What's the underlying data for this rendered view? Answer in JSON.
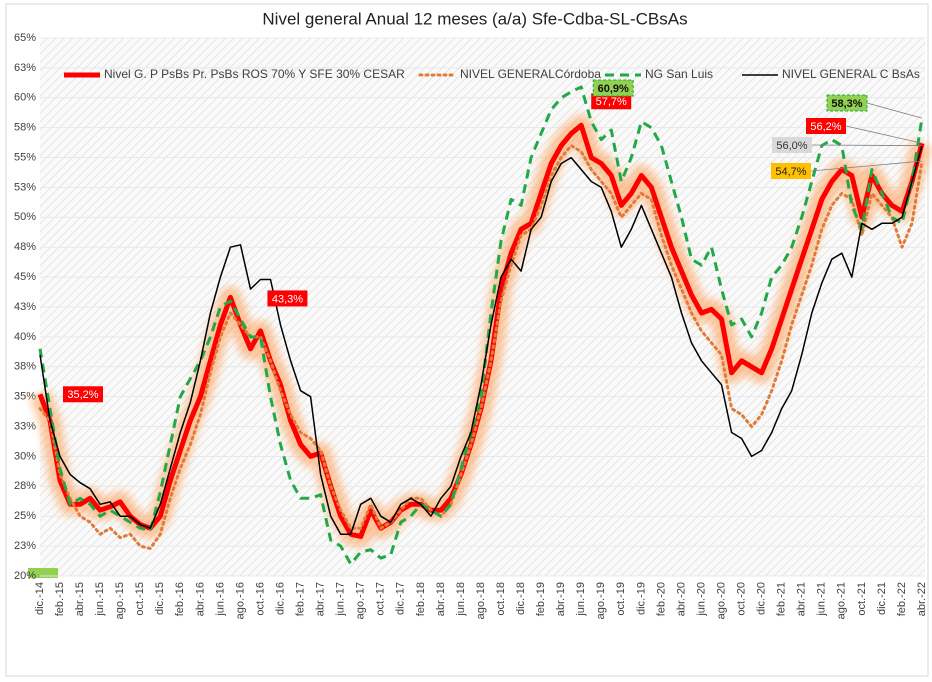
{
  "chart_data": {
    "type": "line",
    "title": "Nivel general  Anual 12 meses (a/a) Sfe-Cdba-SL-CBsAs",
    "categories": [
      "dic.-14",
      null,
      "feb.-15",
      null,
      "abr.-15",
      null,
      "jun.-15",
      null,
      "ago.-15",
      null,
      "oct.-15",
      null,
      "dic.-15",
      null,
      "feb.-16",
      null,
      "abr.-16",
      null,
      "jun.-16",
      null,
      "ago.-16",
      null,
      "oct.-16",
      null,
      "dic.-16",
      null,
      "feb.-17",
      null,
      "abr.-17",
      null,
      "jun.-17",
      null,
      "ago.-17",
      null,
      "oct.-17",
      null,
      "dic.-17",
      null,
      "feb.-18",
      null,
      "abr.-18",
      null,
      "jun.-18",
      null,
      "ago.-18",
      null,
      "oct.-18",
      null,
      "dic.-18",
      null,
      "feb.-19",
      null,
      "abr.-19",
      null,
      "jun.-19",
      null,
      "ago.-19",
      null,
      "oct.-19",
      null,
      "dic.-19",
      null,
      "feb.-20",
      null,
      "abr.-20",
      null,
      "jun.-20",
      null,
      "ago.-20",
      null,
      "oct.-20",
      null,
      "dic.-20",
      null,
      "feb.-21",
      null,
      "abr.-21",
      null,
      "jun.-21",
      null,
      "ago.-21",
      null,
      "oct.-21",
      null,
      "dic.-21",
      null,
      "feb.-22",
      null,
      "abr.-22"
    ],
    "series": [
      {
        "name": "Nivel G. P PsBs Pr. PsBs ROS 70% Y SFE 30% CESAR",
        "color": "#ff0000",
        "style": "solid",
        "width": 5,
        "glow": true,
        "values": [
          35.2,
          33,
          28,
          26,
          26,
          26.5,
          25.5,
          25.8,
          26.2,
          25,
          24.3,
          24,
          25,
          28,
          30.5,
          33,
          35,
          38,
          41,
          43.3,
          41,
          39,
          40.5,
          38,
          36,
          33,
          31,
          30,
          30.3,
          27.5,
          25,
          23.5,
          23.3,
          25.5,
          24,
          24.5,
          25.5,
          26,
          26,
          25.5,
          25.5,
          26.5,
          28.5,
          31,
          34,
          38,
          44,
          47,
          49,
          49.5,
          52,
          54.5,
          56,
          57,
          57.7,
          55,
          54.5,
          53.5,
          51,
          52,
          53.5,
          52.5,
          50,
          47.5,
          45.5,
          43.5,
          42,
          42.3,
          41.5,
          37,
          38,
          37.5,
          37,
          39,
          41.5,
          44,
          46.5,
          49,
          51.5,
          53,
          54,
          53.5,
          50,
          53.5,
          52,
          51,
          50.5,
          53,
          56.2
        ],
        "value_labels": [
          "35,2%",
          null,
          null,
          null,
          null,
          null,
          null,
          null,
          null,
          null,
          null,
          null,
          null,
          null,
          null,
          null,
          null,
          null,
          null,
          "43,3%",
          null,
          null,
          null,
          null,
          null,
          null,
          null,
          null,
          null,
          null,
          null,
          null,
          null,
          null,
          null,
          null,
          null,
          null,
          null,
          null,
          null,
          null,
          null,
          null,
          null,
          null,
          null,
          null,
          null,
          null,
          null,
          null,
          null,
          null,
          "57,7%",
          null,
          null,
          null,
          null,
          null,
          null,
          null,
          null,
          null,
          null,
          null,
          null,
          null,
          null,
          null,
          null,
          null,
          null,
          null,
          null,
          null,
          null,
          null,
          null,
          null,
          null,
          null,
          null,
          null,
          null,
          null,
          null,
          null,
          "56,2%"
        ]
      },
      {
        "name": "NIVEL GENERALCórdoba",
        "color": "#e07b39",
        "style": "dotted",
        "width": 3,
        "values": [
          34,
          33,
          28.5,
          26.5,
          25,
          24.5,
          23.5,
          24,
          23.2,
          23.5,
          22.5,
          22.3,
          23.5,
          26.5,
          29,
          31,
          33.5,
          37,
          40,
          42,
          41,
          40,
          40,
          38,
          35.5,
          33.5,
          32,
          31.5,
          30.5,
          27.5,
          25.5,
          24,
          24,
          26,
          24,
          24.5,
          25.5,
          26.5,
          26.5,
          25.5,
          25,
          26,
          28.5,
          31,
          34,
          38,
          43,
          46,
          48.5,
          49,
          51,
          53.5,
          55,
          56,
          55.5,
          54,
          53,
          52,
          50,
          51,
          52,
          51.5,
          48.5,
          46,
          44,
          42,
          40.5,
          39.5,
          38.5,
          34,
          33.5,
          32.5,
          33.5,
          35.5,
          38,
          41,
          43.5,
          46,
          49,
          51,
          52,
          51.5,
          48.5,
          52,
          51,
          50,
          47.5,
          49.5,
          54.7
        ],
        "value_labels": [
          null,
          null,
          null,
          null,
          null,
          null,
          null,
          null,
          null,
          null,
          null,
          null,
          null,
          null,
          null,
          null,
          null,
          null,
          null,
          null,
          null,
          null,
          null,
          null,
          null,
          null,
          null,
          null,
          null,
          null,
          null,
          null,
          null,
          null,
          null,
          null,
          null,
          null,
          null,
          null,
          null,
          null,
          null,
          null,
          null,
          null,
          null,
          null,
          null,
          null,
          null,
          null,
          null,
          null,
          null,
          null,
          null,
          null,
          null,
          null,
          null,
          null,
          null,
          null,
          null,
          null,
          null,
          null,
          null,
          null,
          null,
          null,
          null,
          null,
          null,
          null,
          null,
          null,
          null,
          null,
          null,
          null,
          null,
          null,
          null,
          null,
          null,
          null,
          "54,7%"
        ]
      },
      {
        "name": "NG San Luis",
        "color": "#22a846",
        "style": "dashed",
        "width": 3,
        "values": [
          39,
          34,
          29,
          26,
          26.5,
          26,
          25,
          25.5,
          25,
          24.5,
          24,
          23.8,
          27,
          31,
          35,
          36.5,
          38,
          40,
          42.5,
          43,
          41.5,
          40,
          40,
          35,
          31,
          28,
          26.5,
          26.5,
          26.8,
          23,
          22.5,
          21,
          22,
          22.2,
          21.5,
          21.8,
          24.5,
          25,
          26,
          25.5,
          25,
          26,
          29,
          32,
          35,
          42,
          48,
          51.5,
          51,
          55,
          57,
          59,
          60,
          60.5,
          60.9,
          58,
          56.5,
          57.3,
          53,
          55,
          58,
          57.5,
          56,
          53,
          50,
          46.5,
          46,
          47.5,
          44,
          41,
          41.5,
          40,
          42,
          45,
          46,
          47.5,
          50,
          53,
          56,
          56.5,
          56,
          51,
          49,
          54,
          52,
          50,
          49.5,
          53,
          58.3
        ],
        "value_labels": [
          null,
          null,
          null,
          null,
          null,
          null,
          null,
          null,
          null,
          null,
          null,
          null,
          null,
          null,
          null,
          null,
          null,
          null,
          null,
          null,
          null,
          null,
          null,
          null,
          null,
          null,
          null,
          null,
          null,
          null,
          null,
          null,
          null,
          null,
          null,
          null,
          null,
          null,
          null,
          null,
          null,
          null,
          null,
          null,
          null,
          null,
          null,
          null,
          null,
          null,
          null,
          null,
          null,
          null,
          "60,9%",
          null,
          null,
          null,
          null,
          null,
          null,
          null,
          null,
          null,
          null,
          null,
          null,
          null,
          null,
          null,
          null,
          null,
          null,
          null,
          null,
          null,
          null,
          null,
          null,
          null,
          null,
          null,
          null,
          null,
          null,
          null,
          null,
          null,
          "58,3%"
        ]
      },
      {
        "name": "NIVEL GENERAL C BsAs",
        "color": "#000000",
        "style": "solid",
        "width": 1.5,
        "values": [
          38.5,
          33,
          30,
          28.5,
          27.8,
          27.3,
          26,
          26.2,
          25,
          25,
          24.3,
          24,
          26,
          29,
          32,
          34.5,
          38,
          42,
          45,
          47.5,
          47.7,
          44,
          44.8,
          44.8,
          41,
          38,
          35.5,
          35,
          28.5,
          25,
          23.5,
          23.5,
          26,
          26.5,
          25,
          24.5,
          26,
          26.5,
          26,
          25,
          26.5,
          27.5,
          30,
          32,
          36,
          41,
          45,
          46.5,
          45.5,
          49,
          50,
          53,
          54.5,
          55,
          54,
          53,
          52.5,
          50.5,
          47.5,
          49,
          51,
          49,
          47,
          45,
          42,
          39.5,
          38,
          37,
          36,
          32,
          31.5,
          30,
          30.5,
          32,
          34,
          35.5,
          38.5,
          42,
          44.5,
          46.5,
          47,
          45,
          49.5,
          49,
          49.5,
          49.5,
          50,
          53,
          56
        ],
        "value_labels": [
          null,
          null,
          null,
          null,
          null,
          null,
          null,
          null,
          null,
          null,
          null,
          null,
          null,
          null,
          null,
          null,
          null,
          null,
          null,
          null,
          null,
          null,
          null,
          null,
          null,
          null,
          null,
          null,
          null,
          null,
          null,
          null,
          null,
          null,
          null,
          null,
          null,
          null,
          null,
          null,
          null,
          null,
          null,
          null,
          null,
          null,
          null,
          null,
          null,
          null,
          null,
          null,
          null,
          null,
          null,
          null,
          null,
          null,
          null,
          null,
          null,
          null,
          null,
          null,
          null,
          null,
          null,
          null,
          null,
          null,
          null,
          null,
          null,
          null,
          null,
          null,
          null,
          null,
          null,
          null,
          null,
          null,
          null,
          null,
          null,
          null,
          null,
          null,
          "56,0%"
        ]
      }
    ],
    "ylim": [
      20,
      65
    ],
    "yticks": [
      {
        "value": 20,
        "label": "20%"
      },
      {
        "value": 22.5,
        "label": "23%"
      },
      {
        "value": 25,
        "label": "25%"
      },
      {
        "value": 27.5,
        "label": "28%"
      },
      {
        "value": 30,
        "label": "30%"
      },
      {
        "value": 32.5,
        "label": "33%"
      },
      {
        "value": 35,
        "label": "35%"
      },
      {
        "value": 37.5,
        "label": "38%"
      },
      {
        "value": 40,
        "label": "40%"
      },
      {
        "value": 42.5,
        "label": "43%"
      },
      {
        "value": 45,
        "label": "45%"
      },
      {
        "value": 47.5,
        "label": "48%"
      },
      {
        "value": 50,
        "label": "50%"
      },
      {
        "value": 52.5,
        "label": "53%"
      },
      {
        "value": 55,
        "label": "55%"
      },
      {
        "value": 57.5,
        "label": "58%"
      },
      {
        "value": 60,
        "label": "60%"
      },
      {
        "value": 62.5,
        "label": "63%"
      },
      {
        "value": 65,
        "label": "65%"
      }
    ],
    "grid": true
  }
}
